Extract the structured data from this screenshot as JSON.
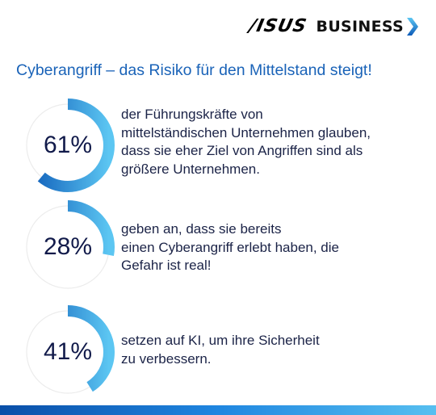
{
  "header": {
    "logo_asus": "/ISUS",
    "logo_business": "BUSINESS"
  },
  "title": "Cyberangriff – das Risiko für den Mittelstand steigt!",
  "colors": {
    "title": "#1a63b8",
    "ring_start": "#0d5bb8",
    "ring_end": "#5cc6f2",
    "ring_track": "#ececec",
    "bottom_bar": "#1f86e0"
  },
  "chart_data": [
    {
      "type": "pie",
      "value": 61,
      "label": "61%",
      "description": [
        "der Führungskräfte von",
        "mittelständischen Unternehmen glauben,",
        "dass sie eher Ziel von Angriffen sind als",
        "größere Unternehmen."
      ]
    },
    {
      "type": "pie",
      "value": 28,
      "label": "28%",
      "description": [
        "geben an, dass sie bereits",
        "einen Cyberangriff erlebt haben, die",
        "Gefahr ist real!"
      ]
    },
    {
      "type": "pie",
      "value": 41,
      "label": "41%",
      "description": [
        "setzen auf KI, um ihre Sicherheit",
        "zu verbessern."
      ]
    }
  ]
}
